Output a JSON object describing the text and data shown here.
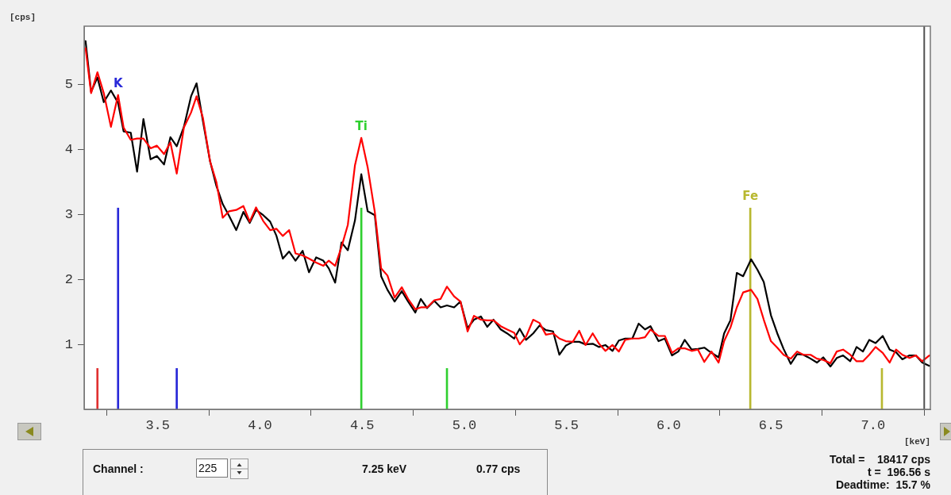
{
  "chart_data": {
    "type": "line",
    "xlabel": "[keV]",
    "ylabel": "[cps]",
    "x": [
      3.147,
      3.174,
      3.205,
      3.236,
      3.271,
      3.306,
      3.333,
      3.368,
      3.399,
      3.43,
      3.465,
      3.496,
      3.531,
      3.562,
      3.593,
      3.628,
      3.663,
      3.69,
      3.721,
      3.756,
      3.787,
      3.818,
      3.849,
      3.884,
      3.919,
      3.95,
      3.981,
      4.016,
      4.05,
      4.081,
      4.112,
      4.143,
      4.174,
      4.209,
      4.24,
      4.275,
      4.31,
      4.337,
      4.368,
      4.399,
      4.43,
      4.465,
      4.496,
      4.527,
      4.562,
      4.593,
      4.624,
      4.659,
      4.694,
      4.725,
      4.76,
      4.787,
      4.818,
      4.853,
      4.884,
      4.915,
      4.95,
      4.981,
      5.016,
      5.047,
      5.081,
      5.112,
      5.143,
      5.178,
      5.209,
      5.244,
      5.271,
      5.302,
      5.337,
      5.368,
      5.399,
      5.434,
      5.465,
      5.496,
      5.531,
      5.562,
      5.593,
      5.628,
      5.659,
      5.69,
      5.725,
      5.756,
      5.787,
      5.822,
      5.853,
      5.884,
      5.911,
      5.95,
      5.981,
      6.016,
      6.047,
      6.078,
      6.112,
      6.143,
      6.174,
      6.209,
      6.244,
      6.271,
      6.302,
      6.333,
      6.364,
      6.403,
      6.434,
      6.465,
      6.5,
      6.531,
      6.562,
      6.597,
      6.628,
      6.659,
      6.694,
      6.725,
      6.756,
      6.791,
      6.822,
      6.853,
      6.888,
      6.919,
      6.95,
      6.981,
      7.012,
      7.047,
      7.081,
      7.112,
      7.143,
      7.178,
      7.209,
      7.24,
      7.275
    ],
    "series": [
      {
        "type": "bar",
        "x": [
          3.205,
          3.306,
          3.593,
          4.496,
          4.915,
          6.399,
          7.043
        ],
        "values": [
          0.63,
          3.1,
          0.63,
          3.1,
          0.63,
          3.1,
          0.63
        ],
        "colors": [
          "#e03030",
          "#2828d8",
          "#2828d8",
          "#30d030",
          "#30d030",
          "#b8b830",
          "#b8b830"
        ]
      },
      {
        "color": "#ff0000",
        "values": [
          5.56,
          4.87,
          5.19,
          4.87,
          4.35,
          4.84,
          4.34,
          4.15,
          4.17,
          4.17,
          4.02,
          4.06,
          3.93,
          4.11,
          3.63,
          4.34,
          4.57,
          4.82,
          4.49,
          3.82,
          3.5,
          2.95,
          3.05,
          3.07,
          3.13,
          2.89,
          3.11,
          2.9,
          2.76,
          2.78,
          2.67,
          2.76,
          2.4,
          2.37,
          2.32,
          2.26,
          2.21,
          2.29,
          2.21,
          2.5,
          2.84,
          3.76,
          4.18,
          3.73,
          3.04,
          2.17,
          2.06,
          1.72,
          1.88,
          1.7,
          1.54,
          1.57,
          1.57,
          1.68,
          1.7,
          1.89,
          1.74,
          1.66,
          1.2,
          1.44,
          1.38,
          1.37,
          1.37,
          1.28,
          1.23,
          1.18,
          1.0,
          1.12,
          1.38,
          1.33,
          1.15,
          1.17,
          1.09,
          1.05,
          1.04,
          1.21,
          0.99,
          1.17,
          1.01,
          0.9,
          0.99,
          0.89,
          1.07,
          1.09,
          1.09,
          1.11,
          1.23,
          1.13,
          1.13,
          0.87,
          0.94,
          0.94,
          0.9,
          0.92,
          0.73,
          0.89,
          0.72,
          1.05,
          1.26,
          1.57,
          1.8,
          1.84,
          1.7,
          1.38,
          1.05,
          0.95,
          0.84,
          0.78,
          0.89,
          0.84,
          0.84,
          0.78,
          0.76,
          0.71,
          0.89,
          0.92,
          0.84,
          0.74,
          0.74,
          0.84,
          0.96,
          0.87,
          0.72,
          0.92,
          0.84,
          0.79,
          0.83,
          0.74,
          0.83
        ]
      },
      {
        "color": "#000000",
        "values": [
          5.67,
          4.89,
          5.11,
          4.73,
          4.91,
          4.72,
          4.28,
          4.26,
          3.66,
          4.47,
          3.85,
          3.9,
          3.77,
          4.19,
          4.05,
          4.35,
          4.82,
          5.02,
          4.44,
          3.82,
          3.44,
          3.16,
          2.98,
          2.76,
          3.04,
          2.87,
          3.07,
          2.99,
          2.89,
          2.67,
          2.32,
          2.43,
          2.29,
          2.44,
          2.11,
          2.34,
          2.29,
          2.17,
          1.95,
          2.57,
          2.45,
          2.91,
          3.62,
          3.05,
          2.99,
          2.05,
          1.84,
          1.66,
          1.82,
          1.66,
          1.49,
          1.7,
          1.56,
          1.67,
          1.57,
          1.6,
          1.57,
          1.66,
          1.25,
          1.38,
          1.43,
          1.27,
          1.38,
          1.23,
          1.17,
          1.09,
          1.24,
          1.07,
          1.17,
          1.29,
          1.22,
          1.2,
          0.84,
          0.98,
          1.04,
          1.04,
          1.0,
          1.01,
          0.96,
          0.99,
          0.9,
          1.06,
          1.09,
          1.09,
          1.32,
          1.23,
          1.28,
          1.05,
          1.09,
          0.83,
          0.89,
          1.07,
          0.92,
          0.93,
          0.95,
          0.87,
          0.8,
          1.17,
          1.37,
          2.1,
          2.05,
          2.31,
          2.15,
          1.96,
          1.45,
          1.17,
          0.93,
          0.7,
          0.85,
          0.84,
          0.78,
          0.72,
          0.8,
          0.66,
          0.79,
          0.83,
          0.74,
          0.96,
          0.89,
          1.07,
          1.02,
          1.13,
          0.92,
          0.88,
          0.77,
          0.83,
          0.83,
          0.72,
          0.67
        ]
      }
    ],
    "ref_lines": [
      {
        "axis": "x",
        "value": 7.25,
        "color": "#505050"
      }
    ],
    "annotations": [
      {
        "text": "K",
        "x": 3.306,
        "y": 4.84
      },
      {
        "text": "Ti",
        "x": 4.496,
        "y": 4.18
      },
      {
        "text": "Fe",
        "x": 6.399,
        "y": 3.1
      },
      "Channel :",
      "225",
      "7.25 keV",
      "0.77 cps",
      "Total =    18417 cps",
      "t =  196.56 s",
      "Deadtime:  15.7 %"
    ],
    "xlim": [
      3.14,
      7.28
    ],
    "xticks": [
      {
        "value": 3.5,
        "label": "3.5"
      },
      {
        "value": 4.0,
        "label": "4.0"
      },
      {
        "value": 4.5,
        "label": "4.5"
      },
      {
        "value": 5.0,
        "label": "5.0"
      },
      {
        "value": 5.5,
        "label": "5.5"
      },
      {
        "value": 6.0,
        "label": "6.0"
      },
      {
        "value": 6.5,
        "label": "6.5"
      },
      {
        "value": 7.0,
        "label": "7.0"
      }
    ],
    "ylim": [
      0,
      5.9
    ],
    "yticks": [
      1,
      2,
      3,
      4,
      5
    ],
    "grid": false,
    "legend": false,
    "marker": "none",
    "line_style": "solid"
  }
}
